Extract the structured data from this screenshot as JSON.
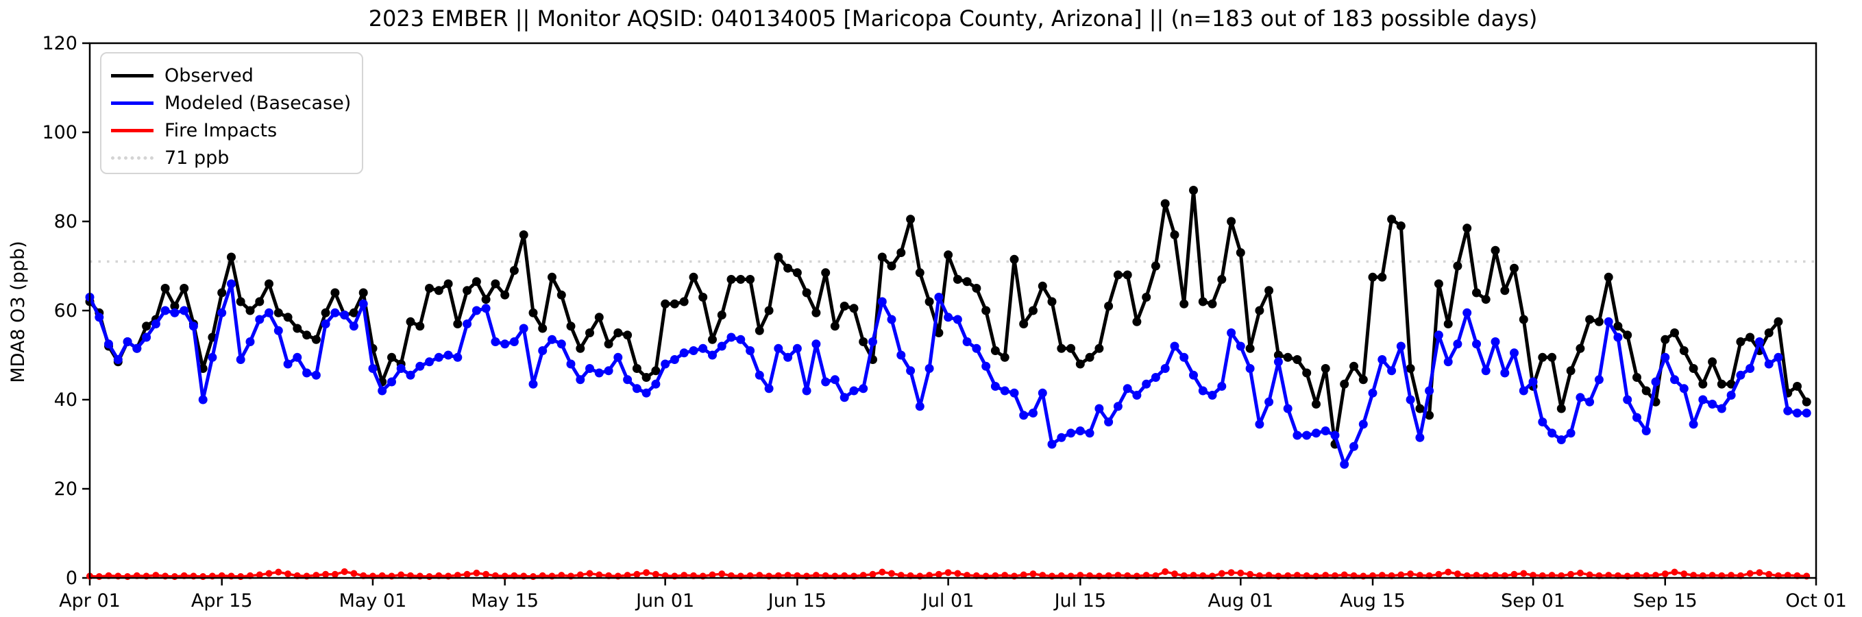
{
  "chart_data": {
    "type": "line",
    "title": "2023 EMBER || Monitor AQSID: 040134005 [Maricopa County, Arizona] || (n=183 out of 183 possible days)",
    "ylabel": "MDA8 O3 (ppb)",
    "xlabel": "",
    "ylim": [
      0,
      120
    ],
    "yticks": [
      0,
      20,
      40,
      60,
      80,
      100,
      120
    ],
    "xlim_days": [
      0,
      183
    ],
    "x_start_date": "Apr 01",
    "x_end_date": "Oct 01",
    "grid": "off",
    "legend_position": "upper-left",
    "xticks": [
      {
        "day": 0,
        "label": "Apr 01"
      },
      {
        "day": 14,
        "label": "Apr 15"
      },
      {
        "day": 30,
        "label": "May 01"
      },
      {
        "day": 44,
        "label": "May 15"
      },
      {
        "day": 61,
        "label": "Jun 01"
      },
      {
        "day": 75,
        "label": "Jun 15"
      },
      {
        "day": 91,
        "label": "Jul 01"
      },
      {
        "day": 105,
        "label": "Jul 15"
      },
      {
        "day": 122,
        "label": "Aug 01"
      },
      {
        "day": 136,
        "label": "Aug 15"
      },
      {
        "day": 153,
        "label": "Sep 01"
      },
      {
        "day": 167,
        "label": "Sep 15"
      },
      {
        "day": 183,
        "label": "Oct 01"
      }
    ],
    "threshold": {
      "label": "71 ppb",
      "value": 71,
      "color": "#d4d4d4",
      "style": "dotted"
    },
    "series": [
      {
        "name": "Observed",
        "color": "#000000",
        "values": [
          62,
          59.5,
          52,
          48.5,
          53,
          51.5,
          56.5,
          58,
          65,
          61,
          65,
          57,
          47,
          54,
          64,
          72,
          62,
          60,
          62,
          66,
          59.5,
          58.5,
          56,
          54.5,
          53.5,
          59.5,
          64,
          59,
          59.5,
          64,
          51.5,
          44,
          49.5,
          48,
          57.5,
          56.5,
          65,
          64.5,
          66,
          57,
          64.5,
          66.5,
          62.5,
          66,
          63.5,
          69,
          77,
          59.5,
          56,
          67.5,
          63.5,
          56.5,
          51.5,
          55,
          58.5,
          52.5,
          55,
          54.5,
          47,
          45,
          46.5,
          61.5,
          61.5,
          62,
          67.5,
          63,
          53.5,
          59,
          67,
          67,
          67,
          55.5,
          60,
          72,
          69.5,
          68.5,
          64,
          59.5,
          68.5,
          56.5,
          61,
          60.5,
          53,
          49,
          72,
          70,
          73,
          80.5,
          68.5,
          62,
          55,
          72.5,
          67,
          66.5,
          65,
          60,
          51,
          49.5,
          71.5,
          57,
          60,
          65.5,
          62,
          51.5,
          51.5,
          48,
          49.5,
          51.5,
          61,
          68,
          68,
          57.5,
          63,
          70,
          84,
          77,
          61.5,
          87,
          62,
          61.5,
          67,
          80,
          73,
          51.5,
          60,
          64.5,
          50,
          49.5,
          49,
          46,
          39,
          47,
          30,
          43.5,
          47.5,
          44.5,
          67.5,
          67.5,
          80.5,
          79,
          47,
          38,
          36.5,
          66,
          57,
          70,
          78.5,
          64,
          62.5,
          73.5,
          64.5,
          69.5,
          58,
          43,
          49.5,
          49.5,
          38,
          46.5,
          51.5,
          58,
          57.5,
          67.5,
          56.5,
          54.5,
          45,
          42,
          39.5,
          53.5,
          55,
          51,
          47,
          43.5,
          48.5,
          43.5,
          43.5,
          53,
          54,
          51,
          55,
          57.5,
          41.5,
          43,
          39.5
        ]
      },
      {
        "name": "Modeled (Basecase)",
        "color": "#0000ff",
        "values": [
          63,
          58.5,
          52.5,
          49,
          53,
          51.5,
          54,
          57,
          60,
          59.5,
          60,
          56.5,
          40,
          49.5,
          59.5,
          66,
          49,
          53,
          58,
          59.5,
          55.5,
          48,
          49.5,
          46,
          45.5,
          57,
          59.5,
          59,
          56.5,
          61.5,
          47,
          42,
          44,
          47,
          45.5,
          47.5,
          48.5,
          49.5,
          50,
          49.5,
          57,
          60,
          60.5,
          53,
          52.5,
          53,
          56,
          43.5,
          51,
          53.5,
          52.5,
          48,
          44.5,
          47,
          46,
          46.5,
          49.5,
          44.5,
          42.5,
          41.5,
          43.5,
          48,
          49,
          50.5,
          51,
          51.5,
          50,
          52,
          54,
          53.5,
          51,
          45.5,
          42.5,
          51.5,
          49.5,
          51.5,
          42,
          52.5,
          44,
          44.5,
          40.5,
          42,
          42.5,
          53,
          62,
          58,
          50,
          46.5,
          38.5,
          47,
          63,
          58.5,
          58,
          53,
          51.5,
          47.5,
          43,
          42,
          41.5,
          36.5,
          37,
          41.5,
          30,
          31.5,
          32.5,
          33,
          32.5,
          38,
          35,
          38.5,
          42.5,
          41,
          43.5,
          45,
          47,
          52,
          49.5,
          45.5,
          42,
          41,
          43,
          55,
          52,
          47,
          34.5,
          39.5,
          48.5,
          38,
          32,
          32,
          32.5,
          33,
          32,
          25.5,
          29.5,
          34.5,
          41.5,
          49,
          46.5,
          52,
          40,
          31.5,
          42,
          54.5,
          48.5,
          52.5,
          59.5,
          52.5,
          46.5,
          53,
          46,
          50.5,
          42,
          44,
          35,
          32.5,
          31,
          32.5,
          40.5,
          39.5,
          44.5,
          57.5,
          54,
          40,
          36,
          33,
          44,
          49.5,
          44.5,
          42.5,
          34.5,
          40,
          39,
          38,
          41,
          45.5,
          47,
          53,
          48,
          49.5,
          37.5,
          37,
          37
        ]
      },
      {
        "name": "Fire Impacts",
        "color": "#ff0000",
        "values": [
          0.4,
          0.3,
          0.5,
          0.4,
          0.3,
          0.5,
          0.4,
          0.6,
          0.4,
          0.3,
          0.5,
          0.4,
          0.3,
          0.4,
          0.5,
          0.4,
          0.3,
          0.5,
          0.7,
          1.0,
          1.3,
          0.9,
          0.5,
          0.4,
          0.6,
          0.8,
          0.8,
          1.4,
          1.0,
          0.5,
          0.4,
          0.5,
          0.4,
          0.7,
          0.5,
          0.4,
          0.3,
          0.5,
          0.4,
          0.6,
          0.8,
          1.1,
          0.8,
          0.5,
          0.4,
          0.5,
          0.4,
          0.3,
          0.5,
          0.4,
          0.6,
          0.4,
          0.7,
          1.0,
          0.7,
          0.5,
          0.4,
          0.6,
          0.8,
          1.2,
          0.8,
          0.5,
          0.4,
          0.6,
          0.5,
          0.4,
          0.7,
          0.9,
          0.5,
          0.4,
          0.5,
          0.6,
          0.4,
          0.5,
          0.6,
          0.5,
          0.4,
          0.6,
          0.5,
          0.4,
          0.5,
          0.4,
          0.6,
          0.8,
          1.3,
          1.0,
          0.6,
          0.5,
          0.4,
          0.6,
          0.8,
          1.2,
          1.0,
          0.6,
          0.5,
          0.4,
          0.5,
          0.6,
          0.4,
          0.7,
          0.9,
          0.6,
          0.4,
          0.5,
          0.4,
          0.6,
          0.5,
          0.4,
          0.5,
          0.6,
          0.5,
          0.4,
          0.6,
          0.5,
          1.4,
          0.9,
          0.5,
          0.6,
          0.5,
          0.4,
          1.0,
          1.2,
          1.1,
          0.8,
          0.5,
          0.6,
          0.4,
          0.5,
          0.6,
          0.5,
          0.4,
          0.6,
          0.5,
          0.7,
          0.5,
          0.4,
          0.5,
          0.6,
          0.5,
          0.7,
          0.9,
          0.6,
          0.5,
          0.8,
          1.3,
          0.9,
          0.5,
          0.6,
          0.5,
          0.6,
          0.5,
          0.8,
          1.0,
          0.6,
          0.5,
          0.6,
          0.5,
          0.8,
          1.1,
          0.7,
          0.5,
          0.6,
          0.5,
          0.4,
          0.6,
          0.5,
          0.6,
          0.9,
          1.3,
          0.9,
          0.6,
          0.5,
          0.6,
          0.5,
          0.6,
          0.5,
          1.0,
          1.2,
          0.8,
          0.5,
          0.6,
          0.5,
          0.4
        ]
      }
    ]
  },
  "legend": {
    "entries": [
      "Observed",
      "Modeled (Basecase)",
      "Fire Impacts",
      "71 ppb"
    ]
  },
  "colors": {
    "observed": "#000000",
    "modeled": "#0000ff",
    "fire": "#ff0000",
    "threshold": "#d4d4d4",
    "axis": "#000000",
    "background": "#ffffff"
  }
}
